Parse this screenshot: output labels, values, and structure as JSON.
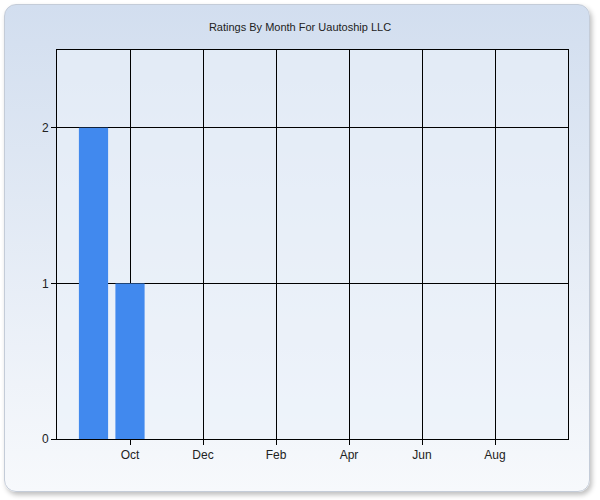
{
  "chart_data": {
    "type": "bar",
    "title": "Ratings By Month For Uautoship LLC",
    "categories": [
      null,
      "Oct",
      null,
      "Dec",
      null,
      "Feb",
      null,
      "Apr",
      null,
      "Jun",
      null,
      "Aug",
      null
    ],
    "values": [
      2,
      1,
      0,
      0,
      0,
      0,
      0,
      0,
      0,
      0,
      0,
      0,
      0
    ],
    "color": "#4189ee",
    "ylim": [
      0,
      2.5
    ],
    "yticks": [
      0,
      1,
      2
    ],
    "grid": true
  }
}
